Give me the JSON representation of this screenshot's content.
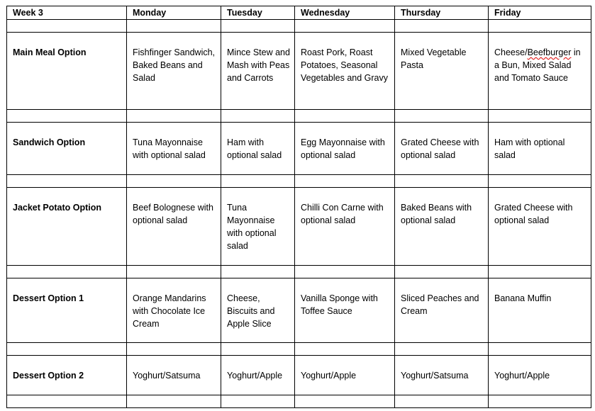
{
  "table": {
    "headers": [
      "Week 3",
      "Monday",
      "Tuesday",
      "Wednesday",
      "Thursday",
      "Friday"
    ],
    "rows": [
      {
        "label": "Main Meal Option",
        "cells": [
          "Fishfinger Sandwich, Baked Beans and Salad",
          "Mince Stew and Mash with Peas and Carrots",
          "Roast Pork, Roast Potatoes, Seasonal Vegetables and Gravy",
          "Mixed Vegetable Pasta",
          "Cheese/Beefburger in a Bun, Mixed Salad and Tomato Sauce"
        ]
      },
      {
        "label": "Sandwich Option",
        "cells": [
          "Tuna Mayonnaise with optional salad",
          "Ham with optional salad",
          "Egg Mayonnaise with optional salad",
          "Grated Cheese with optional salad",
          "Ham with optional salad"
        ]
      },
      {
        "label": "Jacket Potato Option",
        "cells": [
          "Beef Bolognese with optional salad",
          "Tuna Mayonnaise with optional salad",
          "Chilli Con Carne with optional salad",
          "Baked Beans with optional salad",
          "Grated Cheese with optional salad"
        ]
      },
      {
        "label": "Dessert Option 1",
        "cells": [
          "Orange Mandarins with Chocolate Ice Cream",
          "Cheese, Biscuits and Apple Slice",
          "Vanilla Sponge with Toffee Sauce",
          "Sliced Peaches and Cream",
          "Banana Muffin"
        ]
      },
      {
        "label": "Dessert Option 2",
        "cells": [
          "Yoghurt/Satsuma",
          "Yoghurt/Apple",
          "Yoghurt/Apple",
          "Yoghurt/Satsuma",
          "Yoghurt/Apple"
        ]
      }
    ]
  }
}
